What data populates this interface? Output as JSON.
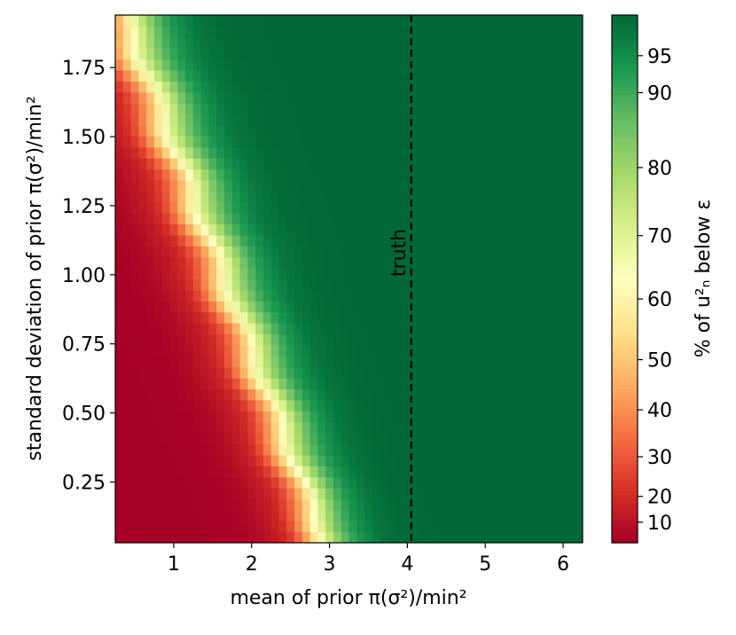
{
  "chart_data": {
    "type": "heatmap",
    "title": "",
    "xlabel": "mean of prior π(σ²)/min²",
    "ylabel": "standard deviation of prior π(σ²)/min²",
    "xlim": [
      0.25,
      6.25
    ],
    "ylim": [
      0.03,
      1.94
    ],
    "x_ticks": [
      "1",
      "2",
      "3",
      "4",
      "5",
      "6"
    ],
    "x_tick_values": [
      1,
      2,
      3,
      4,
      5,
      6
    ],
    "y_ticks": [
      "0.25",
      "0.50",
      "0.75",
      "1.00",
      "1.25",
      "1.50",
      "1.75"
    ],
    "y_tick_values": [
      0.25,
      0.5,
      0.75,
      1.0,
      1.25,
      1.5,
      1.75
    ],
    "colorbar": {
      "label": "% of u²ₙ below ε",
      "colormap": "RdYlGn",
      "ticks": [
        "10",
        "20",
        "30",
        "40",
        "50",
        "60",
        "70",
        "80",
        "90",
        "95"
      ],
      "tick_values": [
        10,
        20,
        30,
        40,
        50,
        60,
        70,
        80,
        90,
        95
      ],
      "range": [
        5,
        99
      ]
    },
    "transition": {
      "x_at_50pct_bottom": 2.85,
      "x_at_50pct_top": 0.25,
      "y_top": 1.94,
      "y_bottom": 0.03
    },
    "annotation": {
      "text": "truth",
      "x": 4.05,
      "line_style": "dashed"
    }
  }
}
